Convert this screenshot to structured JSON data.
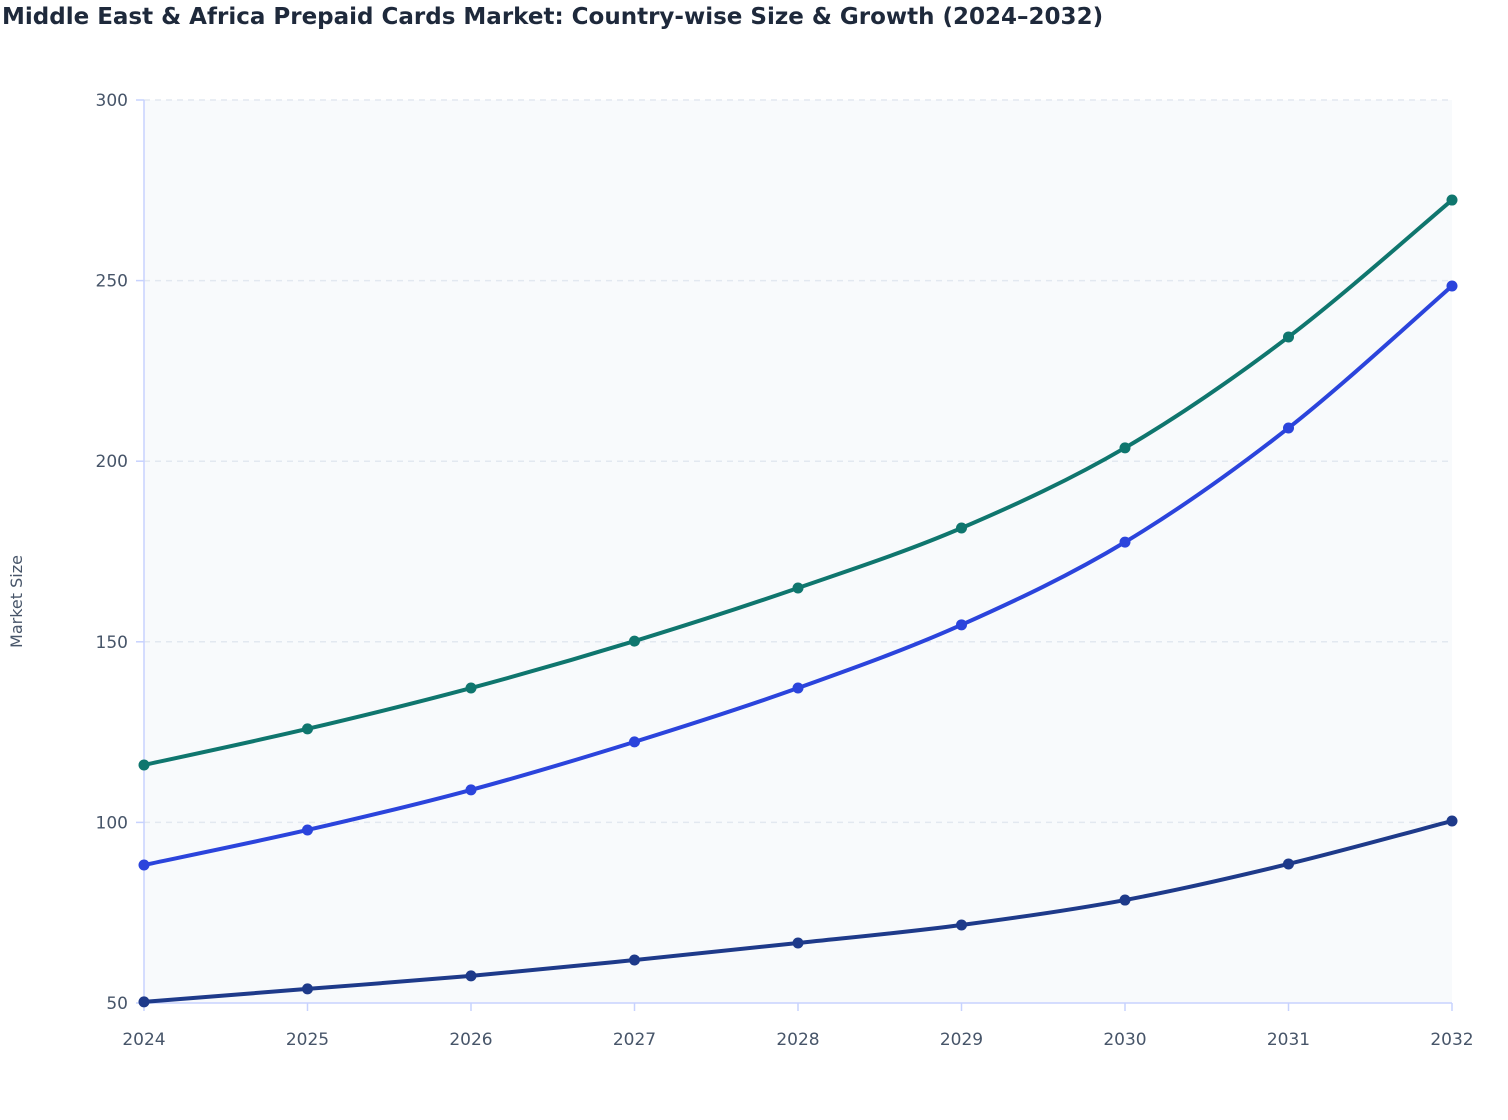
{
  "chart_data": {
    "type": "line",
    "title": "Middle East & Africa Prepaid Cards Market: Country-wise Size & Growth (2024–2032)",
    "xlabel": "",
    "ylabel": "Market Size",
    "x": [
      "2024",
      "2025",
      "2026",
      "2027",
      "2028",
      "2029",
      "2030",
      "2031",
      "2032"
    ],
    "ylim": [
      50,
      300
    ],
    "yticks": [
      50,
      100,
      150,
      200,
      250,
      300
    ],
    "grid": true,
    "legend": "none",
    "series": [
      {
        "color": "#0f766e",
        "values": [
          115.9,
          125.9,
          137.2,
          150.2,
          164.9,
          181.5,
          203.7,
          234.4,
          272.3
        ]
      },
      {
        "color": "#2b44dc",
        "values": [
          88.2,
          97.9,
          109.0,
          122.3,
          137.2,
          154.7,
          177.6,
          209.2,
          248.5
        ]
      },
      {
        "color": "#1e3a8a",
        "values": [
          50.3,
          53.9,
          57.5,
          61.9,
          66.6,
          71.6,
          78.5,
          88.5,
          100.4
        ]
      }
    ]
  }
}
